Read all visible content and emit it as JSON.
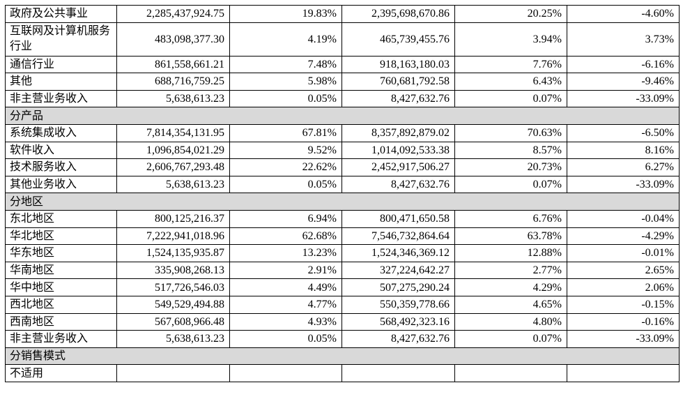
{
  "rows": [
    {
      "type": "data",
      "label": "政府及公共事业",
      "revenue_current": "2,285,437,924.75",
      "share_current": "19.83%",
      "revenue_prior": "2,395,698,670.86",
      "share_prior": "20.25%",
      "change": "-4.60%"
    },
    {
      "type": "data",
      "tall": true,
      "label": "互联网及计算机服务行业",
      "revenue_current": "483,098,377.30",
      "share_current": "4.19%",
      "revenue_prior": "465,739,455.76",
      "share_prior": "3.94%",
      "change": "3.73%"
    },
    {
      "type": "data",
      "label": "通信行业",
      "revenue_current": "861,558,661.21",
      "share_current": "7.48%",
      "revenue_prior": "918,163,180.03",
      "share_prior": "7.76%",
      "change": "-6.16%"
    },
    {
      "type": "data",
      "label": "其他",
      "revenue_current": "688,716,759.25",
      "share_current": "5.98%",
      "revenue_prior": "760,681,792.58",
      "share_prior": "6.43%",
      "change": "-9.46%"
    },
    {
      "type": "data",
      "label": "非主营业务收入",
      "revenue_current": "5,638,613.23",
      "share_current": "0.05%",
      "revenue_prior": "8,427,632.76",
      "share_prior": "0.07%",
      "change": "-33.09%"
    },
    {
      "type": "section",
      "label": "分产品"
    },
    {
      "type": "data",
      "label": "系统集成收入",
      "revenue_current": "7,814,354,131.95",
      "share_current": "67.81%",
      "revenue_prior": "8,357,892,879.02",
      "share_prior": "70.63%",
      "change": "-6.50%"
    },
    {
      "type": "data",
      "label": "软件收入",
      "revenue_current": "1,096,854,021.29",
      "share_current": "9.52%",
      "revenue_prior": "1,014,092,533.38",
      "share_prior": "8.57%",
      "change": "8.16%"
    },
    {
      "type": "data",
      "label": "技术服务收入",
      "revenue_current": "2,606,767,293.48",
      "share_current": "22.62%",
      "revenue_prior": "2,452,917,506.27",
      "share_prior": "20.73%",
      "change": "6.27%"
    },
    {
      "type": "data",
      "label": "其他业务收入",
      "revenue_current": "5,638,613.23",
      "share_current": "0.05%",
      "revenue_prior": "8,427,632.76",
      "share_prior": "0.07%",
      "change": "-33.09%"
    },
    {
      "type": "section",
      "label": "分地区"
    },
    {
      "type": "data",
      "label": "东北地区",
      "revenue_current": "800,125,216.37",
      "share_current": "6.94%",
      "revenue_prior": "800,471,650.58",
      "share_prior": "6.76%",
      "change": "-0.04%"
    },
    {
      "type": "data",
      "label": "华北地区",
      "revenue_current": "7,222,941,018.96",
      "share_current": "62.68%",
      "revenue_prior": "7,546,732,864.64",
      "share_prior": "63.78%",
      "change": "-4.29%"
    },
    {
      "type": "data",
      "label": "华东地区",
      "revenue_current": "1,524,135,935.87",
      "share_current": "13.23%",
      "revenue_prior": "1,524,346,369.12",
      "share_prior": "12.88%",
      "change": "-0.01%"
    },
    {
      "type": "data",
      "label": "华南地区",
      "revenue_current": "335,908,268.13",
      "share_current": "2.91%",
      "revenue_prior": "327,224,642.27",
      "share_prior": "2.77%",
      "change": "2.65%"
    },
    {
      "type": "data",
      "label": "华中地区",
      "revenue_current": "517,726,546.03",
      "share_current": "4.49%",
      "revenue_prior": "507,275,290.24",
      "share_prior": "4.29%",
      "change": "2.06%"
    },
    {
      "type": "data",
      "label": "西北地区",
      "revenue_current": "549,529,494.88",
      "share_current": "4.77%",
      "revenue_prior": "550,359,778.66",
      "share_prior": "4.65%",
      "change": "-0.15%"
    },
    {
      "type": "data",
      "label": "西南地区",
      "revenue_current": "567,608,966.48",
      "share_current": "4.93%",
      "revenue_prior": "568,492,323.16",
      "share_prior": "4.80%",
      "change": "-0.16%"
    },
    {
      "type": "data",
      "label": "非主营业务收入",
      "revenue_current": "5,638,613.23",
      "share_current": "0.05%",
      "revenue_prior": "8,427,632.76",
      "share_prior": "0.07%",
      "change": "-33.09%"
    },
    {
      "type": "section",
      "label": "分销售模式"
    },
    {
      "type": "data",
      "label": "不适用",
      "revenue_current": "",
      "share_current": "",
      "revenue_prior": "",
      "share_prior": "",
      "change": ""
    }
  ],
  "colors": {
    "section_background": "#d9d9d9",
    "border": "#000000",
    "text": "#000000"
  }
}
